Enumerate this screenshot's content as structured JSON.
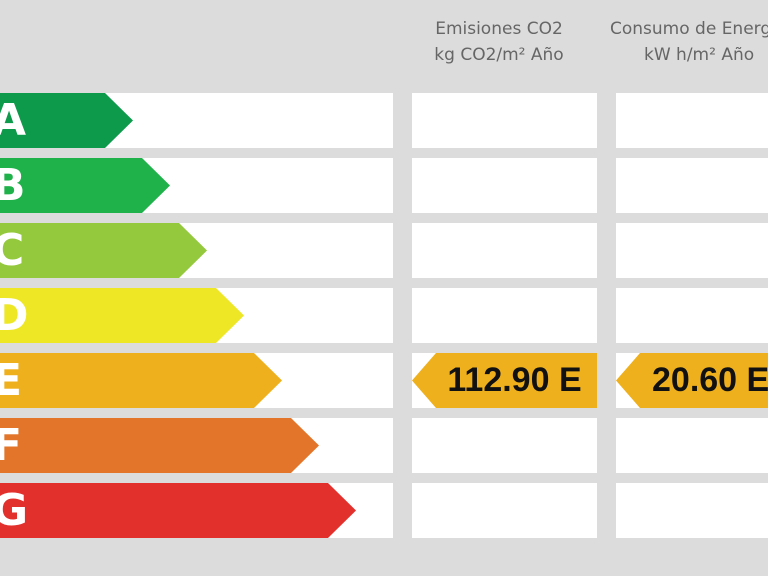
{
  "headers": {
    "emisiones": {
      "line1": "Emisiones CO2",
      "line2": "kg CO2/m² Año"
    },
    "consumo": {
      "line1": "Consumo de Energía",
      "line2": "kW h/m² Año"
    }
  },
  "ratings": [
    {
      "letter": "A",
      "color": "#0e9a4b"
    },
    {
      "letter": "B",
      "color": "#1fb24a"
    },
    {
      "letter": "C",
      "color": "#94c83d"
    },
    {
      "letter": "D",
      "color": "#ede725"
    },
    {
      "letter": "E",
      "color": "#efb01d"
    },
    {
      "letter": "F",
      "color": "#e2752a"
    },
    {
      "letter": "G",
      "color": "#e2302d"
    }
  ],
  "current_rating": "E",
  "emisiones_value": "112.90 E",
  "consumo_value": "20.60 E",
  "badge_color": "#efb01d"
}
